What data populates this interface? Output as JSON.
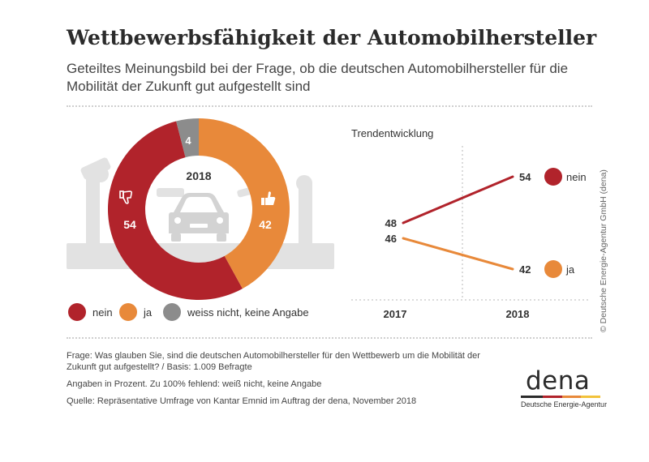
{
  "header": {
    "title": "Wettbewerbsfähigkeit der Automobilhersteller",
    "subtitle": "Geteiltes Meinungsbild bei der Frage, ob die deutschen Automobilhersteller für die Mobilität der Zukunft gut aufgestellt sind"
  },
  "chart_data": [
    {
      "type": "pie",
      "variant": "donut",
      "title": "2018",
      "categories": [
        "nein",
        "ja",
        "weiss nicht, keine Angabe"
      ],
      "values": [
        54,
        42,
        4
      ],
      "colors": [
        "#b1232b",
        "#e8893a",
        "#8c8c8c"
      ],
      "legend_placement": "bottom"
    },
    {
      "type": "line",
      "title": "Trendentwicklung",
      "x": [
        "2017",
        "2018"
      ],
      "series": [
        {
          "name": "nein",
          "values": [
            48,
            54
          ],
          "color": "#b1232b"
        },
        {
          "name": "ja",
          "values": [
            46,
            42
          ],
          "color": "#e8893a"
        }
      ],
      "ylim": [
        38,
        58
      ]
    }
  ],
  "notes": {
    "frage": "Frage: Was glauben Sie, sind die deutschen Automobilhersteller für den Wettbewerb um die Mobilität der Zukunft gut aufgestellt? / Basis: 1.009 Befragte",
    "angaben": "Angaben in Prozent. Zu 100% fehlend: weiß nicht, keine Angabe",
    "quelle": "Quelle: Repräsentative Umfrage von Kantar Emnid im Auftrag der dena, November 2018"
  },
  "copyright": "© Deutsche Energie-Agentur GmbH (dena)",
  "logo": {
    "word": "dena",
    "sub": "Deutsche Energie-Agentur",
    "bar_colors": [
      "#2b2b2b",
      "#b1232b",
      "#e8893a",
      "#f2c23a"
    ]
  }
}
